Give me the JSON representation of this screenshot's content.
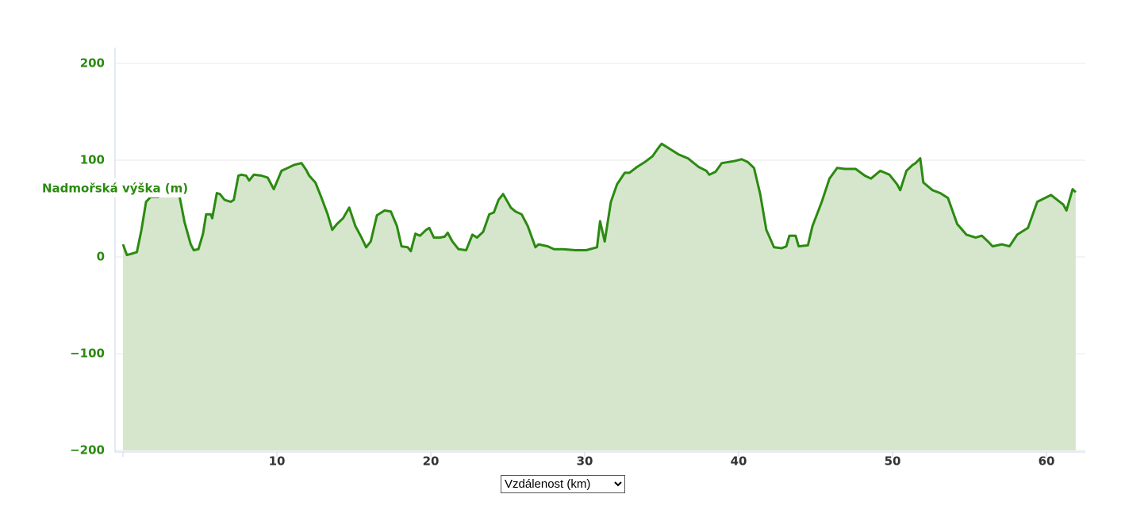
{
  "chart_data": {
    "type": "area",
    "y_label": "Nadmořská výška (m)",
    "x_label": "Vzdálenost (km)",
    "x": [
      0,
      0.26,
      0.5,
      0.9,
      1.2,
      1.5,
      1.8,
      2.3,
      2.8,
      3.6,
      4.0,
      4.4,
      4.6,
      4.9,
      5.2,
      5.4,
      5.7,
      5.8,
      6.1,
      6.3,
      6.6,
      7.0,
      7.2,
      7.5,
      7.7,
      8.0,
      8.2,
      8.5,
      9.0,
      9.4,
      9.8,
      10.3,
      10.7,
      11.1,
      11.6,
      11.9,
      12.1,
      12.5,
      12.9,
      13.3,
      13.6,
      13.9,
      14.3,
      14.7,
      15.1,
      15.5,
      15.8,
      16.1,
      16.5,
      17.0,
      17.4,
      17.8,
      18.1,
      18.5,
      18.7,
      19.0,
      19.3,
      19.7,
      19.9,
      20.2,
      20.6,
      20.9,
      21.1,
      21.4,
      21.8,
      22.3,
      22.7,
      23.0,
      23.4,
      23.8,
      24.1,
      24.4,
      24.7,
      25.2,
      25.5,
      25.9,
      26.3,
      26.8,
      27.0,
      27.6,
      28.0,
      28.6,
      29.4,
      30.1,
      30.8,
      31.0,
      31.3,
      31.7,
      32.1,
      32.6,
      32.9,
      33.4,
      33.9,
      34.4,
      34.8,
      35.0,
      35.6,
      36.1,
      36.7,
      37.4,
      37.9,
      38.1,
      38.5,
      38.9,
      39.7,
      40.2,
      40.6,
      41.0,
      41.4,
      41.8,
      42.3,
      42.8,
      43.1,
      43.3,
      43.7,
      43.9,
      44.5,
      44.8,
      45.4,
      45.9,
      46.4,
      46.9,
      47.6,
      48.2,
      48.6,
      49.2,
      49.8,
      50.3,
      50.5,
      50.9,
      51.3,
      51.5,
      51.8,
      52.0,
      52.6,
      53.1,
      53.6,
      54.2,
      54.8,
      55.4,
      55.8,
      56.2,
      56.5,
      57.1,
      57.6,
      58.1,
      58.8,
      59.4,
      60.3,
      61.1,
      61.3,
      61.7,
      61.9
    ],
    "values": [
      13,
      2,
      3,
      5,
      28,
      57,
      62,
      62,
      75,
      69,
      36,
      13,
      7,
      8,
      24,
      44,
      44,
      40,
      66,
      65,
      59,
      57,
      59,
      84,
      85,
      84,
      79,
      85,
      84,
      82,
      70,
      89,
      92,
      95,
      97,
      90,
      84,
      77,
      61,
      44,
      28,
      34,
      40,
      51,
      32,
      20,
      10,
      16,
      43,
      48,
      47,
      32,
      11,
      10,
      6,
      24,
      22,
      28,
      30,
      20,
      20,
      21,
      25,
      16,
      8,
      7,
      23,
      20,
      26,
      44,
      46,
      59,
      65,
      51,
      47,
      44,
      32,
      10,
      13,
      11,
      8,
      8,
      7,
      7,
      10,
      37,
      16,
      57,
      75,
      87,
      87,
      93,
      98,
      104,
      113,
      117,
      111,
      106,
      102,
      93,
      89,
      85,
      88,
      97,
      99,
      101,
      98,
      92,
      65,
      28,
      10,
      9,
      11,
      22,
      22,
      11,
      12,
      32,
      57,
      81,
      92,
      91,
      91,
      84,
      81,
      89,
      85,
      75,
      69,
      89,
      95,
      97,
      102,
      77,
      69,
      66,
      61,
      34,
      23,
      20,
      22,
      16,
      11,
      13,
      11,
      23,
      30,
      57,
      64,
      54,
      48,
      70,
      67
    ],
    "color": "#2b8a10",
    "fill": "#d5e6cc",
    "xlim": [
      0,
      62.5
    ],
    "ylim": [
      -200,
      200
    ],
    "xticks": [
      10,
      20,
      30,
      40,
      50,
      60
    ],
    "yticks": [
      {
        "value": -200,
        "label": "−200"
      },
      {
        "value": -100,
        "label": "−100"
      },
      0,
      100,
      200
    ],
    "grid": true
  }
}
